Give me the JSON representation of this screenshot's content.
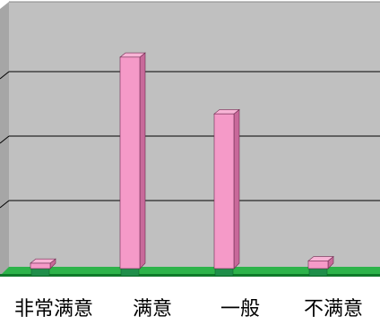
{
  "chart_data": {
    "type": "bar",
    "categories": [
      "非常满意",
      "满意",
      "一般",
      "不满意"
    ],
    "values": [
      1,
      82,
      60,
      3
    ],
    "ylim": [
      0,
      100
    ],
    "grid": true,
    "legend": "none",
    "colors": {
      "bar_front": "#f59ac8",
      "bar_side": "#c8699a",
      "bar_top": "#f8b4d6",
      "wall": "#c0c0c0",
      "wall_side": "#a6a6a6",
      "floor": "#2db34a",
      "floor_dark": "#0f7a2a",
      "base_block": "#1f8f4a",
      "gridline": "#000000"
    }
  }
}
